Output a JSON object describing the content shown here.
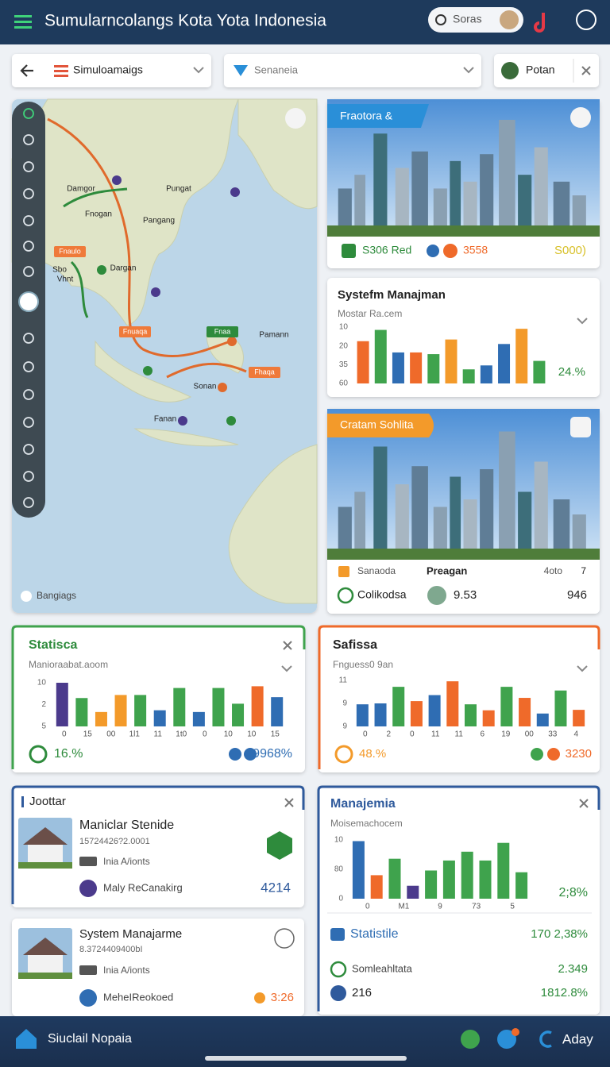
{
  "header": {
    "title": "Sumularncolangs  Kota  Yota Indonesia",
    "search": "Soras"
  },
  "toolbar": {
    "menu": "Simuloamaigs",
    "select": "Senaneia",
    "chip": "Potan"
  },
  "map": {
    "labels": [
      "Damgor",
      "Pungat",
      "Fnogan",
      "Pangang",
      "Dargan",
      "Sbo",
      "Vhnt",
      "Pamann",
      "Sonan",
      "Fanan"
    ],
    "badges": [
      "Fnaulo",
      "Fnuaqa",
      "Fhaqa",
      "Fnaa"
    ],
    "footer": "Bangiags"
  },
  "city_top": {
    "badge": "Fraotora &",
    "stat1": "S306 Red",
    "stat2": "3558",
    "stat3": "S000)"
  },
  "systefm": {
    "title": "Systefm Manajman",
    "subtitle": "Mostar Ra.cem",
    "percent": "24.%",
    "chart": {
      "type": "bar",
      "ylim": [
        0,
        100
      ],
      "ytick_labels": [
        "10",
        "20",
        "35",
        "60"
      ],
      "values": [
        75,
        95,
        55,
        55,
        52,
        78,
        25,
        32,
        70,
        97,
        40
      ],
      "colors": [
        "#ef6a2a",
        "#3fa34d",
        "#2f6db3",
        "#ef6a2a",
        "#3fa34d",
        "#f39a2a",
        "#3fa34d",
        "#2f6db3",
        "#2f6db3",
        "#f39a2a",
        "#3fa34d"
      ]
    }
  },
  "city_mid": {
    "badge": "Cratam Sohlita",
    "item1": "Sanaoda",
    "item2": "Preagan",
    "item3": "4oto",
    "item4": "7",
    "item5": "Colikodsa",
    "item6": "9.53",
    "item7": "946"
  },
  "statisca": {
    "title": "Statisca",
    "subtitle": "Manioraabat.aoom",
    "left": "16.%",
    "right": "9968%",
    "chart": {
      "type": "bar",
      "ylim": [
        0,
        100
      ],
      "ytick_labels": [
        "10",
        "2",
        "5"
      ],
      "x_labels": [
        "0",
        "15",
        "00",
        "1l1",
        "11",
        "1t0",
        "0",
        "10",
        "10",
        "15"
      ],
      "values": [
        100,
        65,
        33,
        72,
        72,
        37,
        88,
        33,
        88,
        52,
        92,
        67
      ],
      "colors": [
        "#4b3a8c",
        "#3fa34d",
        "#f39a2a",
        "#f39a2a",
        "#3fa34d",
        "#2f6db3",
        "#3fa34d",
        "#2f6db3",
        "#3fa34d",
        "#3fa34d",
        "#ef6a2a",
        "#2f6db3"
      ]
    }
  },
  "safissa": {
    "title": "Safissa",
    "subtitle": "Fnguess0 9an",
    "left": "48.%",
    "right": "3230",
    "chart": {
      "type": "bar",
      "ylim": [
        0,
        100
      ],
      "ytick_labels": [
        "11",
        "9",
        "9"
      ],
      "x_labels": [
        "0",
        "2",
        "0",
        "11",
        "11",
        "6",
        "19",
        "00",
        "33",
        "4"
      ],
      "values": [
        48,
        50,
        86,
        55,
        68,
        98,
        48,
        35,
        86,
        62,
        28,
        78,
        36
      ],
      "colors": [
        "#2f6db3",
        "#2f6db3",
        "#3fa34d",
        "#ef6a2a",
        "#2f6db3",
        "#ef6a2a",
        "#3fa34d",
        "#ef6a2a",
        "#3fa34d",
        "#ef6a2a",
        "#2f6db3",
        "#3fa34d",
        "#ef6a2a"
      ]
    }
  },
  "joottar": {
    "title": "Joottar",
    "name": "Maniclar Stenide",
    "code": "15724426?2.0001",
    "sub": "Inia A/ionts",
    "user": "Maly ReCanakirg",
    "value": "4214"
  },
  "system": {
    "name": "System Manajarme",
    "code": "8.3724409400bI",
    "sub": "Inia A/ionts",
    "user": "MeheIReokoed",
    "value": "3:26"
  },
  "manajemia": {
    "title": "Manajemia",
    "subtitle": "Moisemachocem",
    "percent": "2;8%",
    "chart": {
      "type": "bar",
      "ylim": [
        0,
        100
      ],
      "ytick_labels": [
        "10",
        "80",
        "0"
      ],
      "x_labels": [
        "0",
        "M1",
        "9",
        "73",
        "5"
      ],
      "values": [
        98,
        40,
        68,
        22,
        48,
        65,
        80,
        65,
        95,
        45
      ],
      "colors": [
        "#2f6db3",
        "#ef6a2a",
        "#3fa34d",
        "#4b3a8c",
        "#3fa34d",
        "#3fa34d",
        "#3fa34d",
        "#3fa34d",
        "#3fa34d",
        "#3fa34d"
      ]
    },
    "row1": "Statistile",
    "row1_value": "170 2,38%",
    "row2": "Somleahltata",
    "row2_value": "2.349",
    "row3": "216",
    "row3_value": "1812.8%"
  },
  "nav": {
    "left": "Siuclail Nopaia",
    "right": "Aday"
  }
}
